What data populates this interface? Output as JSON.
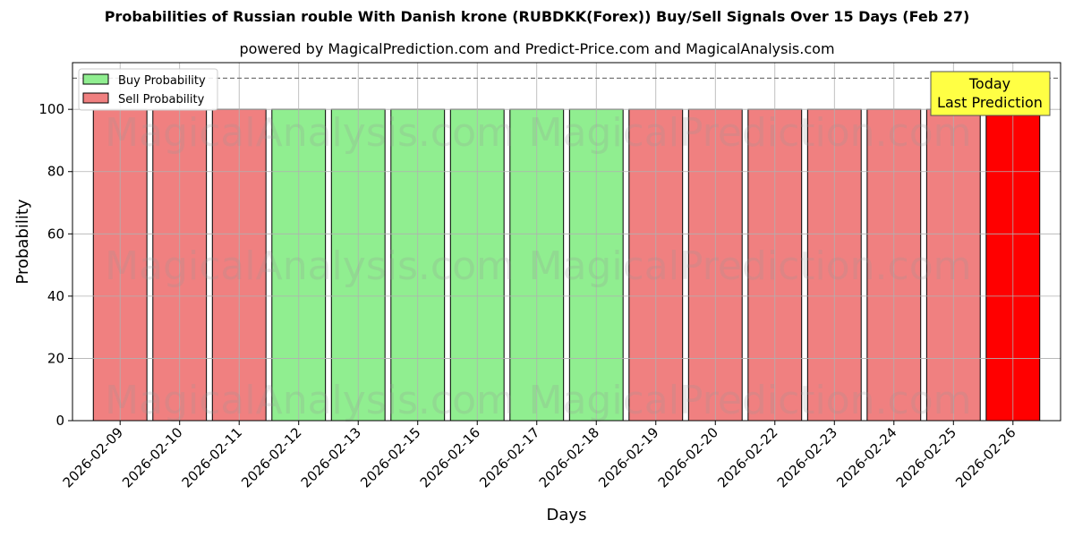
{
  "chart_data": {
    "type": "bar",
    "title": "Probabilities of Russian rouble With Danish krone (RUBDKK(Forex)) Buy/Sell Signals Over 15 Days (Feb 27)",
    "subtitle": "powered by MagicalPrediction.com and Predict-Price.com and MagicalAnalysis.com",
    "xlabel": "Days",
    "ylabel": "Probability",
    "ylim": [
      0,
      115
    ],
    "yticks": [
      0,
      20,
      40,
      60,
      80,
      100
    ],
    "grid": true,
    "legend_position": "top-left",
    "reference_line": 110,
    "categories": [
      "2026-02-09",
      "2026-02-10",
      "2026-02-11",
      "2026-02-12",
      "2026-02-13",
      "2026-02-15",
      "2026-02-16",
      "2026-02-17",
      "2026-02-18",
      "2026-02-19",
      "2026-02-20",
      "2026-02-22",
      "2026-02-23",
      "2026-02-24",
      "2026-02-25",
      "2026-02-26"
    ],
    "values": [
      100,
      100,
      100,
      100,
      100,
      100,
      100,
      100,
      100,
      100,
      100,
      100,
      100,
      100,
      100,
      100
    ],
    "signals": [
      "sell",
      "sell",
      "sell",
      "buy",
      "buy",
      "buy",
      "buy",
      "buy",
      "buy",
      "sell",
      "sell",
      "sell",
      "sell",
      "sell",
      "sell",
      "sell"
    ],
    "highlight_index": 15,
    "series": [
      {
        "name": "Buy Probability",
        "color": "#90ee90"
      },
      {
        "name": "Sell Probability",
        "color": "#f08080"
      }
    ],
    "highlight_color": "#ff0000",
    "annotation": {
      "line1": "Today",
      "line2": "Last Prediction",
      "color": "#ffff44"
    },
    "watermarks": [
      "MagicalAnalysis.com",
      "MagicalPrediction.com"
    ]
  }
}
